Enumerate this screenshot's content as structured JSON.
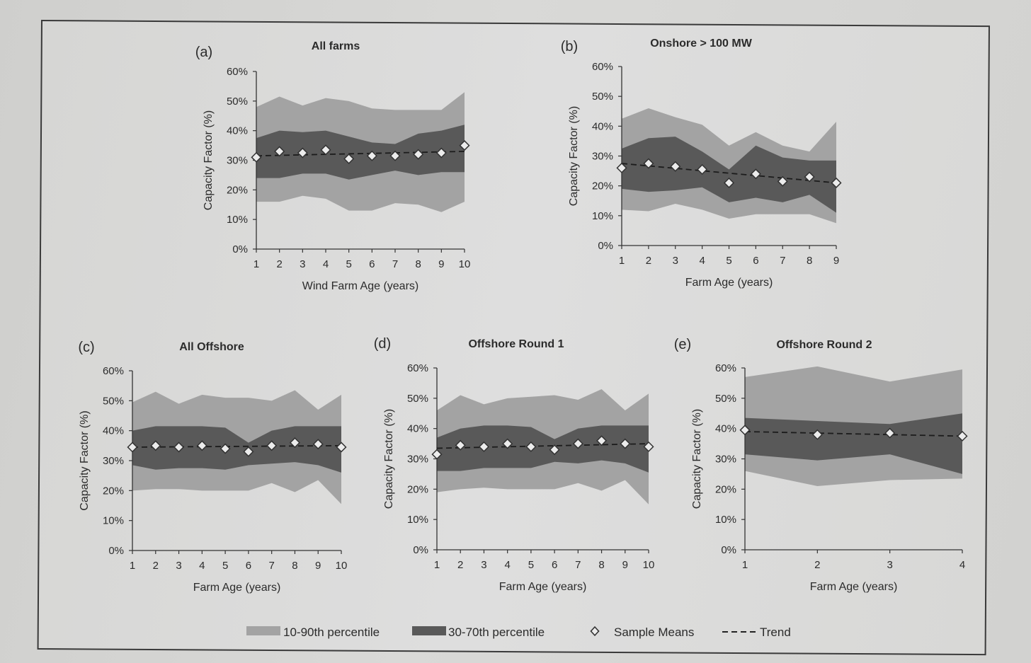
{
  "colors": {
    "band_10_90": "#a3a3a3",
    "band_30_70": "#595959",
    "marker_fill": "#ececec",
    "axis": "#333333"
  },
  "chart_data": [
    {
      "type": "area",
      "panel": "(a)",
      "title": "All farms",
      "xlabel": "Wind Farm Age (years)",
      "ylabel": "Capacity Factor (%)",
      "ylim": [
        0,
        60
      ],
      "yticks": [
        "0%",
        "10%",
        "20%",
        "30%",
        "40%",
        "50%",
        "60%"
      ],
      "x": [
        1,
        2,
        3,
        4,
        5,
        6,
        7,
        8,
        9,
        10
      ],
      "xticks": [
        "1",
        "2",
        "3",
        "4",
        "5",
        "6",
        "7",
        "8",
        "9",
        "10"
      ],
      "p10": [
        16,
        16,
        18,
        17,
        13,
        13,
        15.5,
        15,
        12.5,
        16
      ],
      "p90": [
        48,
        51.5,
        48.5,
        51,
        50,
        47.5,
        47,
        47,
        47,
        53
      ],
      "p30": [
        24,
        24,
        25.5,
        25.5,
        23.5,
        25,
        26.5,
        25,
        26,
        26
      ],
      "p70": [
        37.5,
        40,
        39.5,
        40,
        38,
        36,
        35.5,
        39,
        40,
        42
      ],
      "means": [
        31,
        33,
        32.5,
        33.5,
        30.5,
        31.5,
        31.5,
        32,
        32.5,
        35
      ],
      "trend": [
        31.5,
        33
      ]
    },
    {
      "type": "area",
      "panel": "(b)",
      "title": "Onshore > 100 MW",
      "xlabel": "Farm Age (years)",
      "ylabel": "Capacity Factor (%)",
      "ylim": [
        0,
        60
      ],
      "yticks": [
        "0%",
        "10%",
        "20%",
        "30%",
        "40%",
        "50%",
        "60%"
      ],
      "x": [
        1,
        2,
        3,
        4,
        5,
        6,
        7,
        8,
        9
      ],
      "xticks": [
        "1",
        "2",
        "3",
        "4",
        "5",
        "6",
        "7",
        "8",
        "9"
      ],
      "p10": [
        12,
        11.5,
        14,
        12,
        9,
        10.5,
        10.5,
        10.5,
        7.5
      ],
      "p90": [
        42.5,
        46,
        43,
        40.5,
        33.5,
        38,
        33.5,
        31.5,
        41.5
      ],
      "p30": [
        19,
        18,
        18.5,
        19.5,
        14.5,
        16,
        14.5,
        17,
        11
      ],
      "p70": [
        32.5,
        36,
        36.5,
        31.5,
        25.5,
        33.5,
        29.5,
        28.5,
        28.5
      ],
      "means": [
        26,
        27.5,
        26.5,
        25.5,
        21,
        24,
        21.5,
        23,
        21
      ],
      "trend": [
        27.5,
        21
      ]
    },
    {
      "type": "area",
      "panel": "(c)",
      "title": "All Offshore",
      "xlabel": "Farm Age (years)",
      "ylabel": "Capacity Factor (%)",
      "ylim": [
        0,
        60
      ],
      "yticks": [
        "0%",
        "10%",
        "20%",
        "30%",
        "40%",
        "50%",
        "60%"
      ],
      "x": [
        1,
        2,
        3,
        4,
        5,
        6,
        7,
        8,
        9,
        10
      ],
      "xticks": [
        "1",
        "2",
        "3",
        "4",
        "5",
        "6",
        "7",
        "8",
        "9",
        "10"
      ],
      "p10": [
        20,
        20.5,
        20.5,
        20,
        20,
        20,
        22.5,
        19.5,
        23.5,
        15.5
      ],
      "p90": [
        49.5,
        53,
        49,
        52,
        51,
        51,
        50,
        53.5,
        47,
        52
      ],
      "p30": [
        28.5,
        27,
        27.5,
        27.5,
        27,
        28.5,
        29,
        29.5,
        28.5,
        26
      ],
      "p70": [
        40,
        41.5,
        41.5,
        41.5,
        41,
        36,
        40,
        41.5,
        41.5,
        41.5
      ],
      "means": [
        34.5,
        35,
        34.5,
        35,
        34,
        33,
        35,
        36,
        35.5,
        34.5
      ],
      "trend": [
        34.5,
        35
      ]
    },
    {
      "type": "area",
      "panel": "(d)",
      "title": "Offshore Round 1",
      "xlabel": "Farm Age (years)",
      "ylabel": "Capacity Factor (%)",
      "ylim": [
        0,
        60
      ],
      "yticks": [
        "0%",
        "10%",
        "20%",
        "30%",
        "40%",
        "50%",
        "60%"
      ],
      "x": [
        1,
        2,
        3,
        4,
        5,
        6,
        7,
        8,
        9,
        10
      ],
      "xticks": [
        "1",
        "2",
        "3",
        "4",
        "5",
        "6",
        "7",
        "8",
        "9",
        "10"
      ],
      "p10": [
        19,
        20,
        20.5,
        20,
        20,
        20,
        22,
        19.5,
        23,
        15
      ],
      "p90": [
        46,
        51,
        48,
        50,
        50.5,
        51,
        49.5,
        53,
        46,
        51.5
      ],
      "p30": [
        26,
        26,
        27,
        27,
        27,
        29,
        28.5,
        29.5,
        28.5,
        25.5
      ],
      "p70": [
        37,
        40,
        41,
        41,
        40.5,
        36.5,
        40,
        41,
        41,
        41
      ],
      "means": [
        31.5,
        34.5,
        34,
        35,
        34,
        33,
        35,
        36,
        35,
        34
      ],
      "trend": [
        33.5,
        35
      ]
    },
    {
      "type": "area",
      "panel": "(e)",
      "title": "Offshore Round 2",
      "xlabel": "Farm Age (years)",
      "ylabel": "Capacity Factor (%)",
      "ylim": [
        0,
        60
      ],
      "yticks": [
        "0%",
        "10%",
        "20%",
        "30%",
        "40%",
        "50%",
        "60%"
      ],
      "x": [
        1,
        2,
        3,
        4
      ],
      "xticks": [
        "1",
        "2",
        "3",
        "4"
      ],
      "p10": [
        26,
        21,
        23,
        23.5
      ],
      "p90": [
        57,
        60.5,
        55.5,
        59.5
      ],
      "p30": [
        31.5,
        29.5,
        31.5,
        25
      ],
      "p70": [
        43.5,
        42.5,
        41.5,
        45
      ],
      "means": [
        39.5,
        38,
        38.5,
        37.5
      ],
      "trend": [
        39,
        37.5
      ]
    }
  ],
  "legend": {
    "items": [
      {
        "label": "10-90th percentile"
      },
      {
        "label": "30-70th percentile"
      },
      {
        "label": "Sample Means"
      },
      {
        "label": "Trend"
      }
    ]
  }
}
